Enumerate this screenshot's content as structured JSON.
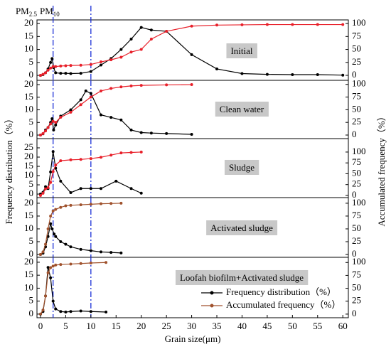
{
  "chart_data": [
    {
      "type": "line",
      "title": "Initial",
      "ylabel": "Frequency distribution（%）",
      "y2label": "Accumulated frequency（%）",
      "annotations": [
        {
          "text": "PM",
          "sub": "2.5"
        },
        {
          "text": "PM",
          "sub": "10"
        }
      ],
      "vlines": [
        2.5,
        10
      ],
      "xlim": [
        -0.7,
        61.1
      ],
      "ylim": [
        -1.9,
        21.4
      ],
      "yticks": [
        0,
        5,
        10,
        15,
        20
      ],
      "y2lim": [
        -9.6,
        107
      ],
      "y2ticks": [
        0,
        25,
        50,
        75,
        100
      ],
      "series": [
        {
          "color": "#000000",
          "x": [
            0,
            0.5,
            1,
            1.5,
            2,
            2.3,
            2.6,
            3,
            4,
            5,
            6,
            8,
            10,
            12,
            14,
            16,
            18,
            20,
            22,
            25,
            30,
            35,
            40,
            45,
            50,
            55,
            60
          ],
          "values": [
            0,
            0.3,
            1,
            2.5,
            5,
            6.5,
            3,
            1,
            0.8,
            0.8,
            0.7,
            0.8,
            1.5,
            4,
            6.5,
            10,
            14,
            18.5,
            17.5,
            17,
            8,
            2.5,
            0.7,
            0.4,
            0.3,
            0.3,
            0.1
          ]
        },
        {
          "color": "#e8202a",
          "axis": "y2",
          "x": [
            0,
            0.5,
            1,
            1.5,
            2,
            2.5,
            3,
            4,
            5,
            6,
            8,
            10,
            12,
            14,
            16,
            18,
            20,
            22,
            25,
            30,
            35,
            40,
            45,
            50,
            55,
            60
          ],
          "values": [
            0,
            2,
            5,
            10,
            14,
            17,
            17,
            18,
            18.5,
            19,
            19.5,
            21,
            26,
            30,
            35,
            45,
            50,
            70,
            85,
            95,
            97,
            97.5,
            98,
            98,
            98,
            98
          ]
        }
      ]
    },
    {
      "type": "line",
      "title": "Clean water",
      "xlim": [
        -0.7,
        61.1
      ],
      "ylim": [
        -1.4,
        21.7
      ],
      "yticks": [
        0,
        5,
        10,
        15,
        20
      ],
      "y2lim": [
        -7,
        108
      ],
      "y2ticks": [
        0,
        25,
        50,
        75,
        100
      ],
      "series": [
        {
          "color": "#000000",
          "x": [
            0,
            0.5,
            1,
            1.5,
            2,
            2.3,
            2.6,
            3,
            4,
            6,
            8,
            9,
            10,
            12,
            14,
            16,
            18,
            20,
            22,
            25,
            30
          ],
          "values": [
            0,
            0.5,
            2,
            3,
            5,
            6.5,
            2,
            4,
            7.5,
            10,
            14,
            17.5,
            16.5,
            8,
            7,
            6,
            2,
            1,
            0.8,
            0.6,
            0.3
          ]
        },
        {
          "color": "#e8202a",
          "axis": "y2",
          "x": [
            0,
            0.5,
            1,
            1.5,
            2,
            2.5,
            3,
            4,
            6,
            8,
            10,
            12,
            14,
            16,
            18,
            20,
            25,
            30
          ],
          "values": [
            0,
            3,
            8,
            15,
            22,
            27,
            25,
            35,
            45,
            60,
            75,
            87,
            92,
            95,
            97,
            98,
            99,
            99.5
          ]
        }
      ]
    },
    {
      "type": "line",
      "title": "Sludge",
      "xlim": [
        -0.7,
        61.1
      ],
      "ylim": [
        -1.9,
        30
      ],
      "yticks": [
        0,
        5,
        10,
        15,
        20,
        25
      ],
      "y2lim": [
        -5,
        131
      ],
      "y2ticks": [
        0,
        25,
        50,
        75,
        100
      ],
      "series": [
        {
          "color": "#000000",
          "x": [
            0,
            0.5,
            1,
            1.5,
            2,
            2.5,
            3,
            4,
            6,
            8,
            10,
            12,
            15,
            18,
            20
          ],
          "values": [
            0,
            1,
            4,
            3,
            12,
            23,
            14,
            7,
            0.8,
            3,
            3,
            3,
            7,
            3,
            0.5
          ]
        },
        {
          "color": "#e8202a",
          "axis": "y2",
          "x": [
            0,
            0.5,
            1,
            1.5,
            2,
            2.5,
            3,
            4,
            6,
            8,
            10,
            12,
            14,
            16,
            18,
            20
          ],
          "values": [
            0,
            5,
            15,
            18,
            30,
            55,
            70,
            80,
            82,
            83,
            85,
            88,
            93,
            98,
            99,
            100
          ]
        }
      ]
    },
    {
      "type": "line",
      "title": "Activated sludge",
      "xlim": [
        -0.7,
        61.1
      ],
      "ylim": [
        -1.1,
        22.2
      ],
      "yticks": [
        0,
        5,
        10,
        15,
        20
      ],
      "y2lim": [
        -5.5,
        111
      ],
      "y2ticks": [
        0,
        25,
        50,
        75,
        100
      ],
      "series": [
        {
          "color": "#000000",
          "x": [
            0,
            0.5,
            1,
            1.5,
            2,
            2.3,
            2.7,
            3,
            4,
            5,
            6,
            8,
            10,
            12,
            14,
            16
          ],
          "values": [
            0,
            0.5,
            3,
            7,
            12,
            10,
            8,
            7,
            5,
            4,
            3,
            2,
            1.5,
            1,
            0.8,
            0.6
          ]
        },
        {
          "color": "#a0522d",
          "axis": "y2",
          "x": [
            0,
            0.5,
            1,
            1.5,
            2,
            2.5,
            3,
            4,
            5,
            6,
            8,
            10,
            12,
            14,
            16
          ],
          "values": [
            0,
            5,
            20,
            50,
            75,
            85,
            88,
            92,
            95,
            96,
            97,
            98,
            99,
            99.5,
            100
          ]
        }
      ]
    },
    {
      "type": "line",
      "title": "Loofah biofilm+Activated sludge",
      "xlabel": "Grain size(μm)",
      "xlim": [
        -0.7,
        61.1
      ],
      "xticks": [
        0,
        5,
        10,
        15,
        20,
        25,
        30,
        35,
        40,
        45,
        50,
        55,
        60
      ],
      "ylim": [
        -1.4,
        21.9
      ],
      "yticks": [
        0,
        5,
        10,
        15,
        20
      ],
      "y2lim": [
        -7,
        110
      ],
      "y2ticks": [
        0,
        25,
        50,
        75,
        100
      ],
      "series": [
        {
          "name": "Frequency distribution（%）",
          "color": "#000000",
          "x": [
            0,
            0.5,
            1,
            1.5,
            2,
            2.5,
            3,
            4,
            5,
            6,
            8,
            10,
            13
          ],
          "values": [
            0,
            1,
            7,
            18,
            14,
            5,
            2,
            1,
            0.8,
            1,
            1.2,
            1,
            0.8
          ]
        },
        {
          "name": "Accumulated frequency（%）",
          "color": "#a0522d",
          "axis": "y2",
          "x": [
            0,
            0.5,
            1,
            1.5,
            2,
            2.5,
            3,
            4,
            6,
            8,
            10,
            13
          ],
          "values": [
            0,
            8,
            35,
            80,
            90,
            93,
            95,
            96,
            97,
            98,
            99,
            100
          ]
        }
      ]
    }
  ]
}
